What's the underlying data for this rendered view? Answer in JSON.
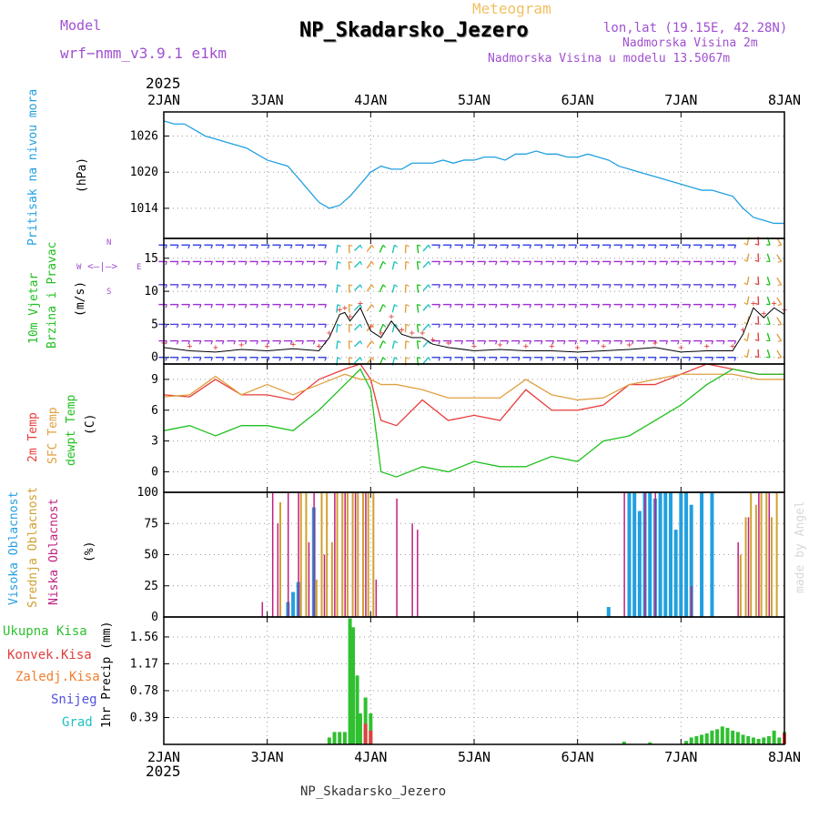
{
  "header": {
    "model_label": "Model",
    "model_name": "wrf−nmm_v3.9.1 e1km",
    "product": "Meteogram",
    "station": "NP_Skadarsko_Jezero",
    "location": "lon,lat (19.15E, 42.28N)",
    "elev_station": "Nadmorska Visina 2m",
    "elev_model": "Nadmorska Visina u modelu 13.5067m",
    "year": "2025",
    "footer": "NP_Skadarsko_Jezero",
    "watermark": "made by Angel"
  },
  "panel_labels": {
    "pressure": {
      "name": "Pritisak na nivou mora",
      "unit": "(hPa)"
    },
    "wind": {
      "name1": "10m Vjetar",
      "name2": "Brzina i Pravac",
      "unit": "(m/s)",
      "compass_n": "N",
      "compass_s": "S",
      "compass_w": "W",
      "compass_e": "E"
    },
    "temp": {
      "t2m": "2m Temp",
      "sfc": "SFC Temp",
      "dewpt": "dewpt Temp",
      "unit": "(C)"
    },
    "cloud": {
      "high": "Visoka Oblacnost",
      "mid": "Srednja Oblacnost",
      "low": "Niska Oblacnost",
      "unit": "(%)"
    },
    "precip": {
      "total": "Ukupna Kisa",
      "conv": "Konvek.Kisa",
      "frozen": "Zaledj.Kisa",
      "snow": "Snijeg",
      "graupel": "Grad",
      "unit": "1hr Precip (mm)"
    }
  },
  "colors": {
    "pressure": "#22a0e0",
    "wind_speed": "#000000",
    "t2m": "#e83c3c",
    "sfc": "#e0a040",
    "dewpt": "#20c020",
    "high_cloud": "#22a0e0",
    "mid_cloud": "#d0a030",
    "low_cloud": "#c02080",
    "precip_total": "#30c030",
    "precip_conv": "#e04040",
    "snow": "#5050e0",
    "graupel": "#20c0c0",
    "purple_text": "#a050d0"
  },
  "chart_data": [
    {
      "type": "line",
      "title": "Pritisak na nivou mora",
      "ylabel": "(hPa)",
      "x_ticks": [
        "2JAN",
        "3JAN",
        "4JAN",
        "5JAN",
        "6JAN",
        "7JAN",
        "8JAN"
      ],
      "ylim": [
        1009,
        1030
      ],
      "y_ticks": [
        1014,
        1020,
        1026
      ],
      "x": [
        0,
        0.1,
        0.2,
        0.3,
        0.4,
        0.5,
        0.6,
        0.7,
        0.8,
        0.9,
        1.0,
        1.1,
        1.2,
        1.3,
        1.4,
        1.5,
        1.6,
        1.7,
        1.8,
        1.9,
        2.0,
        2.1,
        2.2,
        2.3,
        2.4,
        2.5,
        2.6,
        2.7,
        2.8,
        2.9,
        3.0,
        3.1,
        3.2,
        3.3,
        3.4,
        3.5,
        3.6,
        3.7,
        3.8,
        3.9,
        4.0,
        4.1,
        4.2,
        4.3,
        4.4,
        4.5,
        4.6,
        4.7,
        4.8,
        4.9,
        5.0,
        5.1,
        5.2,
        5.3,
        5.4,
        5.5,
        5.6,
        5.7,
        5.8,
        5.9,
        6.0
      ],
      "series": [
        {
          "name": "Pritisak na nivou mora",
          "values": [
            1028.5,
            1028,
            1028,
            1027,
            1026,
            1025.5,
            1025,
            1024.5,
            1024,
            1023,
            1022,
            1021.5,
            1021,
            1019,
            1017,
            1015,
            1014,
            1014.5,
            1016,
            1018,
            1020,
            1021,
            1020.5,
            1020.5,
            1021.5,
            1021.5,
            1021.5,
            1022,
            1021.5,
            1022,
            1022,
            1022.5,
            1022.5,
            1022,
            1023,
            1023,
            1023.5,
            1023,
            1023,
            1022.5,
            1022.5,
            1023,
            1022.5,
            1022,
            1021,
            1020.5,
            1020,
            1019.5,
            1019,
            1018.5,
            1018,
            1017.5,
            1017,
            1017,
            1016.5,
            1016,
            1014,
            1012.5,
            1012,
            1011.5,
            1011.5
          ]
        }
      ]
    },
    {
      "type": "line",
      "title": "10m Vjetar Brzina i Pravac",
      "ylabel": "(m/s)",
      "x_ticks": [
        "2JAN",
        "3JAN",
        "4JAN",
        "5JAN",
        "6JAN",
        "7JAN",
        "8JAN"
      ],
      "ylim": [
        -1,
        18
      ],
      "y_ticks": [
        0,
        5,
        10,
        15
      ],
      "x": [
        0,
        0.25,
        0.5,
        0.75,
        1.0,
        1.25,
        1.5,
        1.6,
        1.7,
        1.75,
        1.8,
        1.9,
        2.0,
        2.1,
        2.2,
        2.3,
        2.4,
        2.5,
        2.6,
        2.75,
        3.0,
        3.25,
        3.5,
        3.75,
        4.0,
        4.25,
        4.5,
        4.75,
        5.0,
        5.25,
        5.5,
        5.6,
        5.7,
        5.8,
        5.9,
        6.0
      ],
      "series": [
        {
          "name": "10m Vjetar",
          "values": [
            1.5,
            1,
            0.8,
            1.2,
            1,
            1.3,
            1,
            3,
            6.5,
            6.8,
            5.5,
            7.5,
            4,
            3,
            5.5,
            3.5,
            3,
            3,
            2,
            1.5,
            1,
            1.2,
            1,
            1,
            0.8,
            1,
            1.2,
            1.5,
            0.8,
            1,
            1,
            3.5,
            7.5,
            6,
            7.5,
            6.5
          ]
        }
      ]
    },
    {
      "type": "line",
      "title": "2m Temp / SFC Temp / dewpt Temp",
      "ylabel": "(C)",
      "x_ticks": [
        "2JAN",
        "3JAN",
        "4JAN",
        "5JAN",
        "6JAN",
        "7JAN",
        "8JAN"
      ],
      "ylim": [
        -2,
        10.5
      ],
      "y_ticks": [
        0,
        3,
        6,
        9
      ],
      "x": [
        0,
        0.25,
        0.5,
        0.75,
        1.0,
        1.25,
        1.5,
        1.75,
        1.9,
        2.0,
        2.1,
        2.25,
        2.5,
        2.75,
        3.0,
        3.25,
        3.5,
        3.75,
        4.0,
        4.25,
        4.5,
        4.75,
        5.0,
        5.25,
        5.5,
        5.75,
        6.0
      ],
      "series": [
        {
          "name": "2m Temp",
          "values": [
            7.5,
            7.3,
            9,
            7.5,
            7.5,
            7,
            9,
            10,
            10.5,
            9,
            5,
            4.5,
            7,
            5,
            5.5,
            5,
            8,
            6,
            6,
            6.5,
            8.5,
            8.5,
            9.5,
            10.5,
            10,
            9.5,
            9.5
          ]
        },
        {
          "name": "SFC Temp",
          "values": [
            7.3,
            7.5,
            9.3,
            7.5,
            8.5,
            7.5,
            8.5,
            9.5,
            9,
            9,
            8.5,
            8.5,
            8,
            7.2,
            7.2,
            7.2,
            9,
            7.5,
            7,
            7.2,
            8.5,
            9,
            9.5,
            9.5,
            9.5,
            9,
            9
          ]
        },
        {
          "name": "dewpt Temp",
          "values": [
            4,
            4.5,
            3.5,
            4.5,
            4.5,
            4,
            6,
            8.5,
            10,
            8,
            0,
            -0.5,
            0.5,
            0,
            1,
            0.5,
            0.5,
            1.5,
            1,
            3,
            3.5,
            5,
            6.5,
            8.5,
            10,
            9.5,
            9.5
          ]
        }
      ]
    },
    {
      "type": "bar",
      "title": "Visoka / Srednja / Niska Oblacnost",
      "ylabel": "(%)",
      "x_ticks": [
        "2JAN",
        "3JAN",
        "4JAN",
        "5JAN",
        "6JAN",
        "7JAN",
        "8JAN"
      ],
      "ylim": [
        0,
        100
      ],
      "y_ticks": [
        0,
        25,
        50,
        75,
        100
      ],
      "series": [
        {
          "name": "Visoka Oblacnost",
          "x": [
            1.2,
            1.25,
            1.3,
            1.45,
            4.3,
            4.5,
            4.55,
            4.6,
            4.65,
            4.7,
            4.75,
            4.8,
            4.85,
            4.9,
            4.95,
            5.0,
            5.05,
            5.1,
            5.2,
            5.3
          ],
          "values": [
            12,
            20,
            28,
            88,
            8,
            100,
            100,
            85,
            100,
            100,
            95,
            100,
            100,
            100,
            70,
            100,
            100,
            90,
            100,
            100
          ]
        },
        {
          "name": "Srednja Oblacnost",
          "x": [
            1.1,
            1.3,
            1.35,
            1.45,
            1.5,
            1.55,
            1.6,
            1.65,
            1.7,
            1.75,
            1.8,
            1.85,
            1.9,
            1.95,
            2.0,
            5.55,
            5.6,
            5.65,
            5.7,
            5.75,
            5.8,
            5.85,
            5.9
          ],
          "values": [
            92,
            100,
            100,
            30,
            100,
            100,
            60,
            100,
            100,
            100,
            100,
            100,
            100,
            100,
            100,
            50,
            80,
            100,
            90,
            100,
            100,
            80,
            100
          ]
        },
        {
          "name": "Niska Oblacnost",
          "x": [
            0.9,
            1.0,
            1.05,
            1.15,
            1.25,
            1.35,
            1.4,
            1.5,
            1.6,
            1.7,
            1.8,
            1.9,
            2.0,
            2.2,
            2.35,
            2.4,
            4.4,
            4.6,
            4.7,
            5.05,
            5.5,
            5.6,
            5.7,
            5.8
          ],
          "values": [
            12,
            100,
            75,
            100,
            100,
            60,
            100,
            50,
            100,
            100,
            100,
            100,
            30,
            95,
            75,
            70,
            100,
            100,
            100,
            25,
            60,
            80,
            100,
            100
          ]
        }
      ]
    },
    {
      "type": "bar",
      "title": "1hr Precip",
      "ylabel": "1hr Precip (mm)",
      "x_ticks": [
        "2JAN",
        "3JAN",
        "4JAN",
        "5JAN",
        "6JAN",
        "7JAN",
        "8JAN"
      ],
      "ylim": [
        0,
        1.85
      ],
      "y_ticks": [
        0.39,
        0.78,
        1.17,
        1.56
      ],
      "series": [
        {
          "name": "Ukupna Kisa",
          "x": [
            1.6,
            1.65,
            1.7,
            1.75,
            1.8,
            1.83,
            1.87,
            1.9,
            1.95,
            2.0,
            4.45,
            4.7,
            5.05,
            5.1,
            5.15,
            5.2,
            5.25,
            5.3,
            5.35,
            5.4,
            5.45,
            5.5,
            5.55,
            5.6,
            5.65,
            5.7,
            5.75,
            5.8,
            5.85,
            5.9,
            5.95,
            6.0
          ],
          "values": [
            0.1,
            0.18,
            0.18,
            0.18,
            1.83,
            1.7,
            1.0,
            0.45,
            0.68,
            0.45,
            0.04,
            0.03,
            0.05,
            0.1,
            0.12,
            0.14,
            0.16,
            0.2,
            0.22,
            0.26,
            0.24,
            0.2,
            0.18,
            0.14,
            0.12,
            0.1,
            0.08,
            0.1,
            0.12,
            0.2,
            0.1,
            0.18
          ]
        },
        {
          "name": "Konvek.Kisa",
          "x": [
            1.95,
            2.0,
            6.0
          ],
          "values": [
            0.3,
            0.2,
            0.16
          ]
        }
      ]
    }
  ]
}
